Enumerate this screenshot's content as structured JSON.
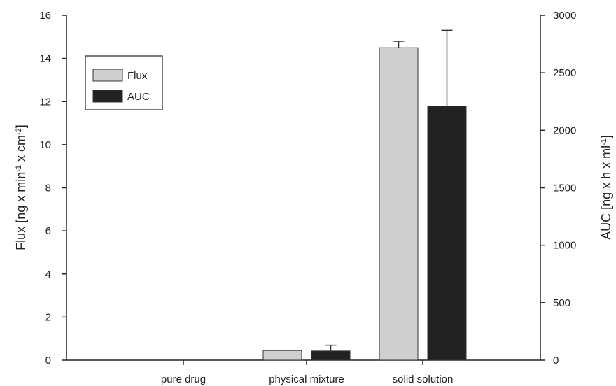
{
  "chart_data": {
    "type": "bar",
    "categories": [
      "pure drug",
      "physical mixture",
      "solid solution"
    ],
    "series": [
      {
        "name": "Flux",
        "axis": "left",
        "color": "#cfcfcf",
        "values": [
          0,
          0.45,
          14.5
        ],
        "errors": [
          0,
          0,
          0.3
        ]
      },
      {
        "name": "AUC",
        "axis": "right",
        "color": "#222222",
        "values": [
          0,
          80,
          2210
        ],
        "errors": [
          0,
          50,
          660
        ]
      }
    ],
    "y_left": {
      "label_parts": [
        {
          "text": "Flux [ng x min",
          "sup": false
        },
        {
          "text": "-1",
          "sup": true
        },
        {
          "text": " x cm",
          "sup": false
        },
        {
          "text": "-2",
          "sup": true
        },
        {
          "text": "]",
          "sup": false
        }
      ],
      "lim": [
        0,
        16
      ],
      "ticks": [
        0,
        2,
        4,
        6,
        8,
        10,
        12,
        14,
        16
      ]
    },
    "y_right": {
      "label_parts": [
        {
          "text": "AUC [ng x h x ml",
          "sup": false
        },
        {
          "text": "-1",
          "sup": true
        },
        {
          "text": "]",
          "sup": false
        }
      ],
      "lim": [
        0,
        3000
      ],
      "ticks": [
        0,
        500,
        1000,
        1500,
        2000,
        2500,
        3000
      ]
    },
    "legend": {
      "placement": "top-left",
      "entries": [
        "Flux",
        "AUC"
      ]
    },
    "grid": false
  }
}
